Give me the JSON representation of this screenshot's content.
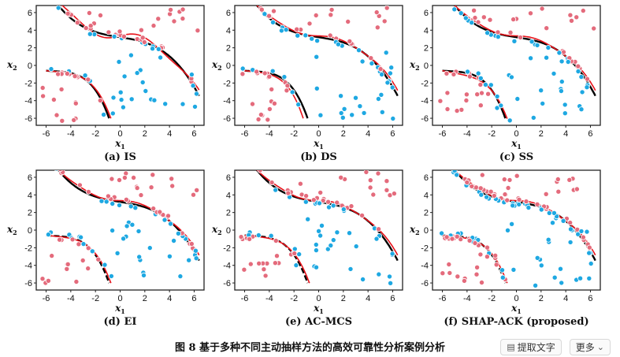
{
  "figure": {
    "caption": "图 8  基于多种不同主动抽样方法的高效可靠性分析案例分析",
    "axis_x_label": "x",
    "axis_y_label": "x",
    "axis_x_sub": "1",
    "axis_y_sub": "2",
    "x_ticks": [
      "-6",
      "-4",
      "-2",
      "0",
      "2",
      "4",
      "6"
    ],
    "y_ticks": [
      "6",
      "4",
      "2",
      "0",
      "-2",
      "-4",
      "-6"
    ],
    "colors": {
      "true_limit": "#000000",
      "surrogate_limit": "#e8121a",
      "safe_points": "#e46b7c",
      "failure_points": "#1ea8e2"
    }
  },
  "toolbar": {
    "extract_label": "提取文字",
    "more_label": "更多",
    "extract_icon": "text-extract-icon",
    "more_icon": "chevron-down-icon"
  },
  "chart_data": [
    {
      "type": "scatter",
      "title": "(a) IS",
      "xlabel": "x1",
      "ylabel": "x2",
      "xlim": [
        -6.8,
        6.8
      ],
      "ylim": [
        -6.8,
        6.8
      ]
    },
    {
      "type": "scatter",
      "title": "(b) DS",
      "xlabel": "x1",
      "ylabel": "x2",
      "xlim": [
        -6.8,
        6.8
      ],
      "ylim": [
        -6.8,
        6.8
      ]
    },
    {
      "type": "scatter",
      "title": "(c) SS",
      "xlabel": "x1",
      "ylabel": "x2",
      "xlim": [
        -6.8,
        6.8
      ],
      "ylim": [
        -6.8,
        6.8
      ]
    },
    {
      "type": "scatter",
      "title": "(d) EI",
      "xlabel": "x1",
      "ylabel": "x2",
      "xlim": [
        -6.8,
        6.8
      ],
      "ylim": [
        -6.8,
        6.8
      ]
    },
    {
      "type": "scatter",
      "title": "(e) AC-MCS",
      "xlabel": "x1",
      "ylabel": "x2",
      "xlim": [
        -6.8,
        6.8
      ],
      "ylim": [
        -6.8,
        6.8
      ]
    },
    {
      "type": "scatter",
      "title": "(f) SHAP-ACK (proposed)",
      "xlabel": "x1",
      "ylabel": "x2",
      "xlim": [
        -6.8,
        6.8
      ],
      "ylim": [
        -6.8,
        6.8
      ]
    }
  ]
}
